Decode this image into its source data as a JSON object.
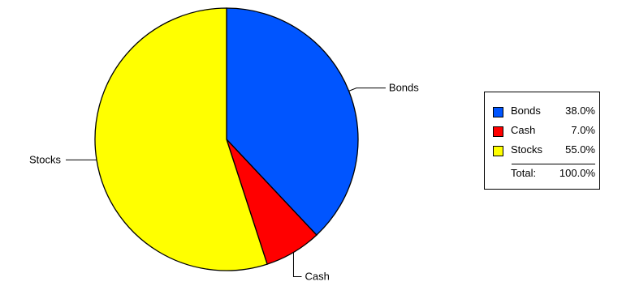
{
  "chart_data": {
    "type": "pie",
    "slices": [
      {
        "name": "Bonds",
        "value": 38.0,
        "pct_label": "38.0%",
        "color": "#0055ff"
      },
      {
        "name": "Cash",
        "value": 7.0,
        "pct_label": "7.0%",
        "color": "#ff0000"
      },
      {
        "name": "Stocks",
        "value": 55.0,
        "pct_label": "55.0%",
        "color": "#ffff00"
      }
    ],
    "start_angle_deg": 0,
    "direction": "clockwise",
    "legend": {
      "position": "right",
      "total_label": "Total:",
      "total_value": "100.0%"
    },
    "outline_color": "#000000"
  }
}
